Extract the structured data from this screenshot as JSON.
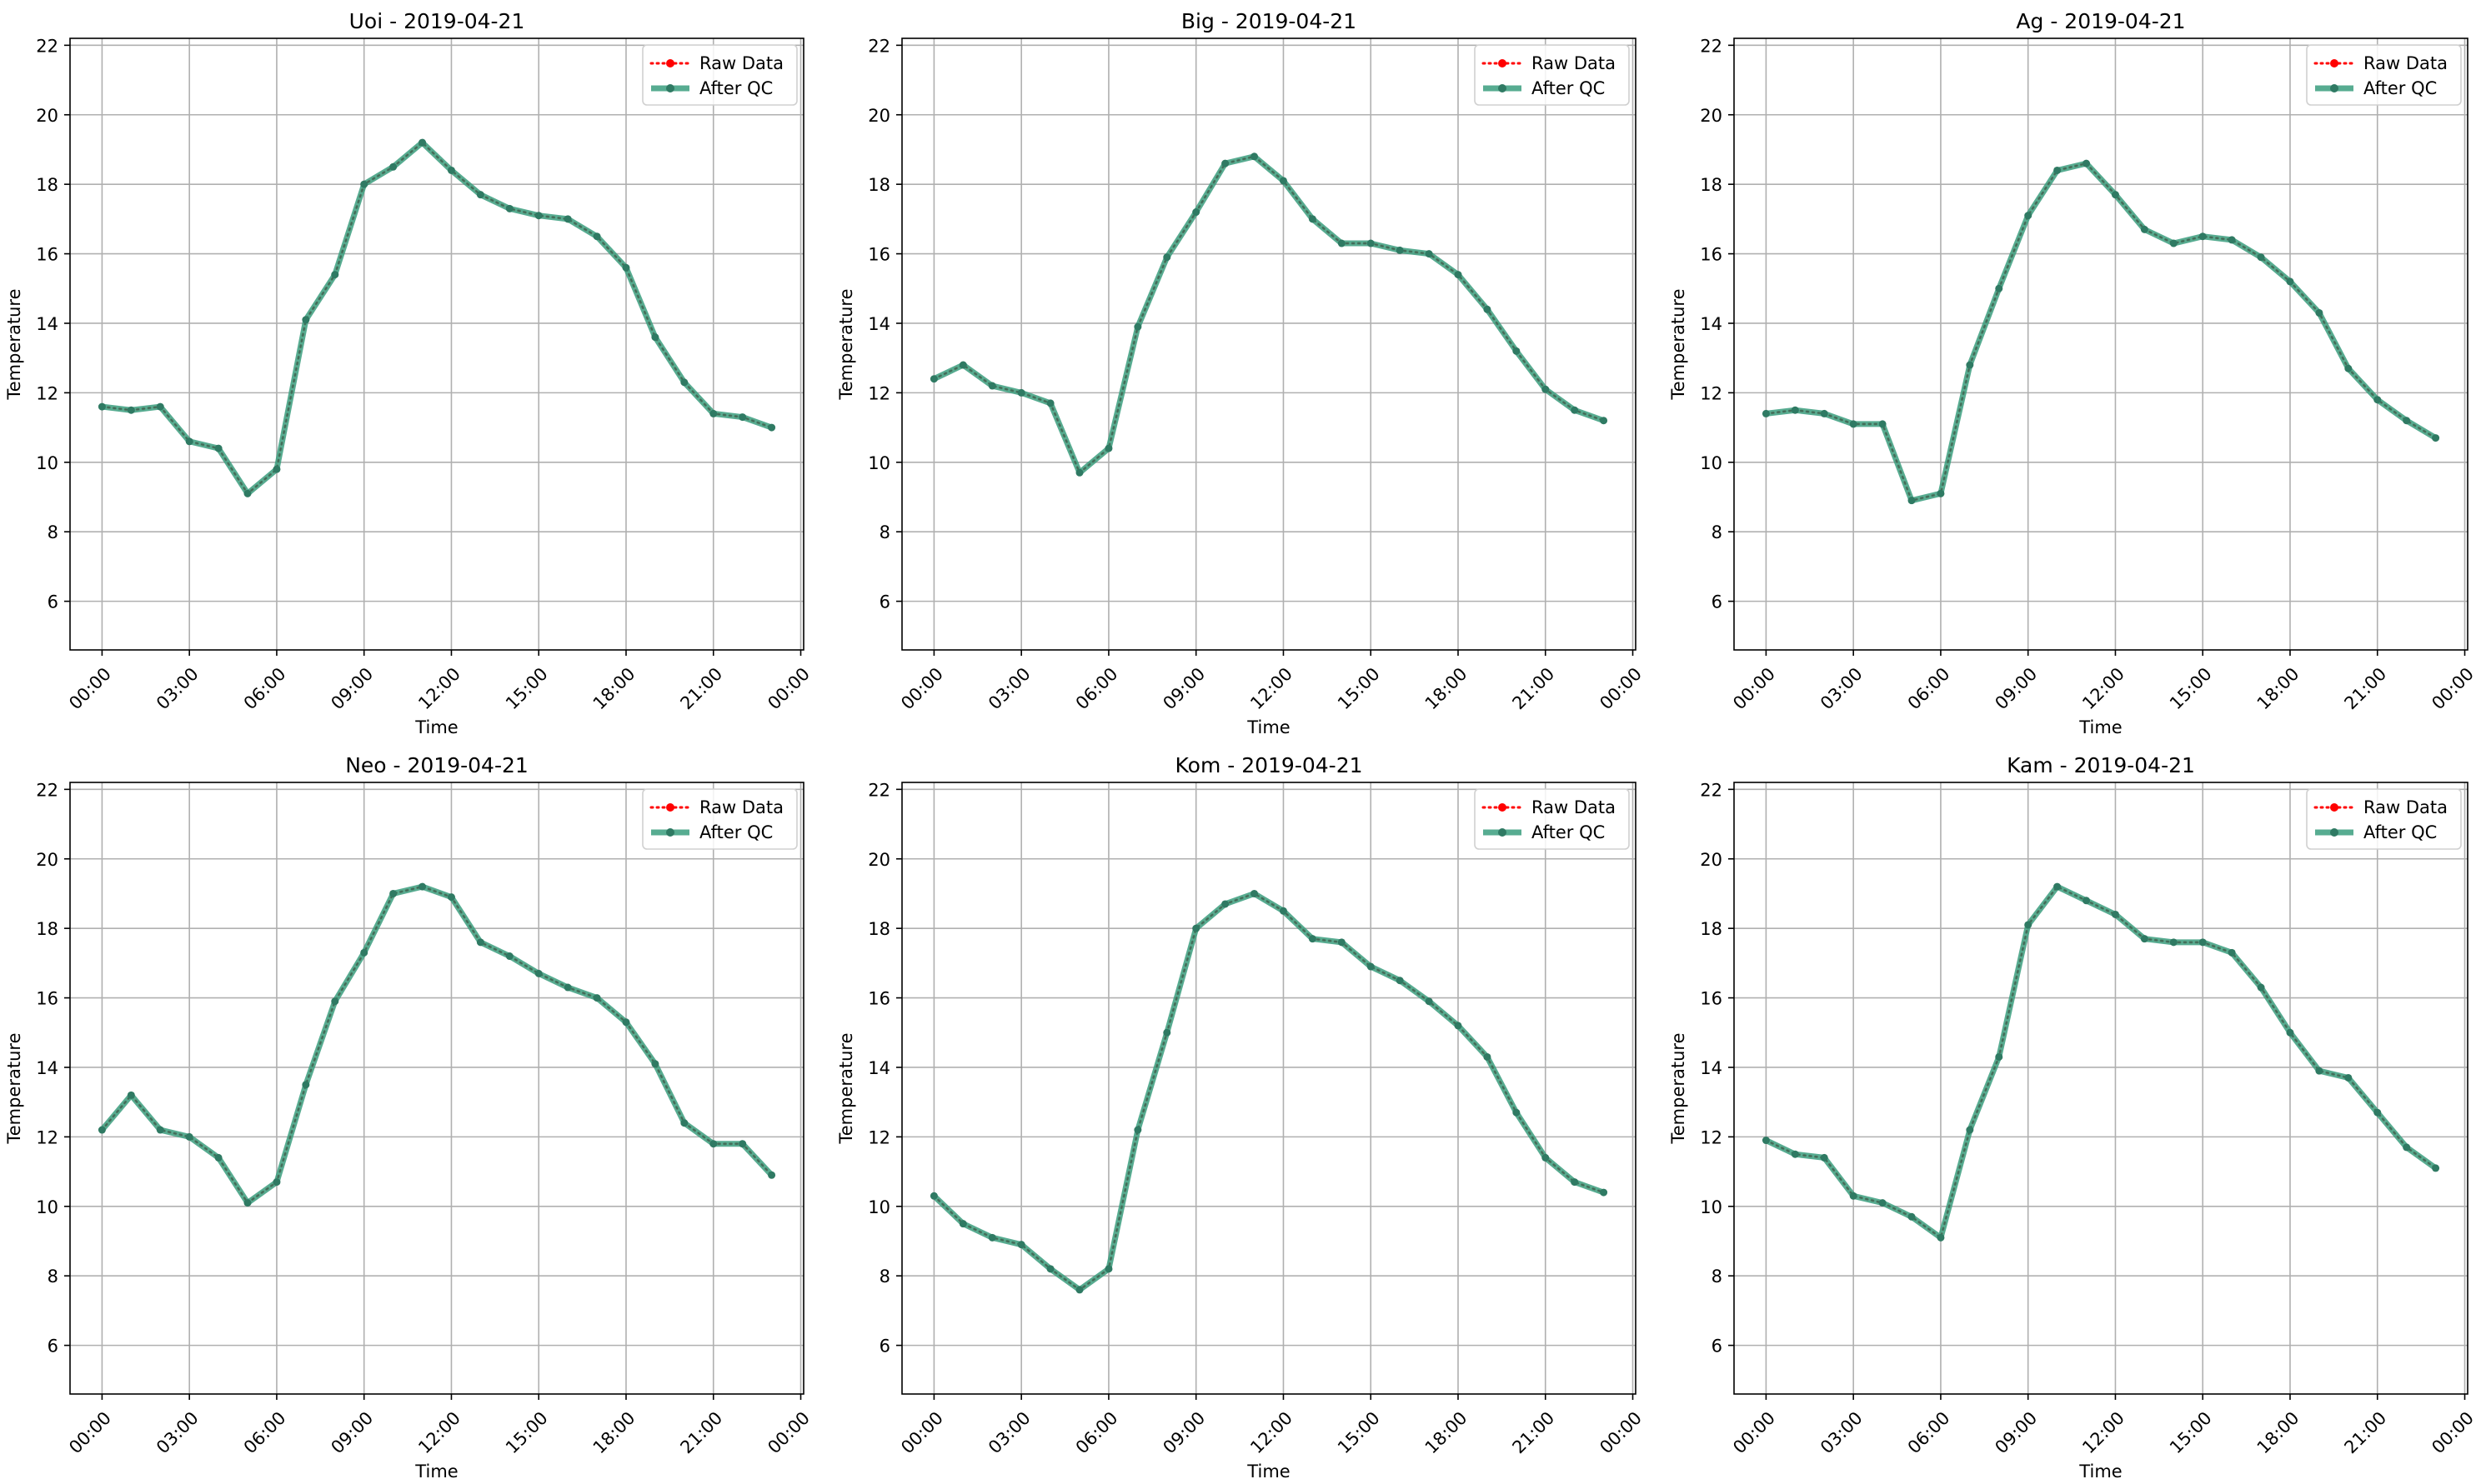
{
  "colors": {
    "raw": "#ff0000",
    "qc": "#2ca02c",
    "qc_line": "#3a9e7e",
    "grid": "#b0b0b0",
    "axes": "#000000"
  },
  "chart_data": [
    {
      "type": "line",
      "title": "Uoi - 2019-04-21",
      "xlabel": "Time",
      "ylabel": "Temperature",
      "x_unit": "hour",
      "xlim": [
        -1.1,
        24.1
      ],
      "ylim": [
        4.6,
        22.2
      ],
      "yticks": [
        6,
        8,
        10,
        12,
        14,
        16,
        18,
        20,
        22
      ],
      "xticks": [
        0,
        3,
        6,
        9,
        12,
        15,
        18,
        21,
        24
      ],
      "xtick_labels": [
        "00:00",
        "03:00",
        "06:00",
        "09:00",
        "12:00",
        "15:00",
        "18:00",
        "21:00",
        "00:00"
      ],
      "grid": true,
      "legend": "upper right",
      "x": [
        0,
        1,
        2,
        3,
        4,
        5,
        6,
        7,
        8,
        9,
        10,
        11,
        12,
        13,
        14,
        15,
        16,
        17,
        18,
        19,
        20,
        21,
        22,
        23
      ],
      "series": [
        {
          "name": "Raw Data",
          "values": [
            11.6,
            11.5,
            11.6,
            10.6,
            10.4,
            9.1,
            9.8,
            14.1,
            15.4,
            18.0,
            18.5,
            19.2,
            18.4,
            17.7,
            17.3,
            17.1,
            17.0,
            16.5,
            15.6,
            13.6,
            12.3,
            11.4,
            11.3,
            11.0
          ]
        },
        {
          "name": "After QC",
          "values": [
            11.6,
            11.5,
            11.6,
            10.6,
            10.4,
            9.1,
            9.8,
            14.1,
            15.4,
            18.0,
            18.5,
            19.2,
            18.4,
            17.7,
            17.3,
            17.1,
            17.0,
            16.5,
            15.6,
            13.6,
            12.3,
            11.4,
            11.3,
            11.0
          ]
        }
      ]
    },
    {
      "type": "line",
      "title": "Big - 2019-04-21",
      "xlabel": "Time",
      "ylabel": "Temperature",
      "x_unit": "hour",
      "xlim": [
        -1.1,
        24.1
      ],
      "ylim": [
        4.6,
        22.2
      ],
      "yticks": [
        6,
        8,
        10,
        12,
        14,
        16,
        18,
        20,
        22
      ],
      "xticks": [
        0,
        3,
        6,
        9,
        12,
        15,
        18,
        21,
        24
      ],
      "xtick_labels": [
        "00:00",
        "03:00",
        "06:00",
        "09:00",
        "12:00",
        "15:00",
        "18:00",
        "21:00",
        "00:00"
      ],
      "grid": true,
      "legend": "upper right",
      "x": [
        0,
        1,
        2,
        3,
        4,
        5,
        6,
        7,
        8,
        9,
        10,
        11,
        12,
        13,
        14,
        15,
        16,
        17,
        18,
        19,
        20,
        21,
        22,
        23
      ],
      "series": [
        {
          "name": "Raw Data",
          "values": [
            12.4,
            12.8,
            12.2,
            12.0,
            11.7,
            9.7,
            10.4,
            13.9,
            15.9,
            17.2,
            18.6,
            18.8,
            18.1,
            17.0,
            16.3,
            16.3,
            16.1,
            16.0,
            15.4,
            14.4,
            13.2,
            12.1,
            11.5,
            11.2
          ]
        },
        {
          "name": "After QC",
          "values": [
            12.4,
            12.8,
            12.2,
            12.0,
            11.7,
            9.7,
            10.4,
            13.9,
            15.9,
            17.2,
            18.6,
            18.8,
            18.1,
            17.0,
            16.3,
            16.3,
            16.1,
            16.0,
            15.4,
            14.4,
            13.2,
            12.1,
            11.5,
            11.2
          ]
        }
      ]
    },
    {
      "type": "line",
      "title": "Ag - 2019-04-21",
      "xlabel": "Time",
      "ylabel": "Temperature",
      "x_unit": "hour",
      "xlim": [
        -1.1,
        24.1
      ],
      "ylim": [
        4.6,
        22.2
      ],
      "yticks": [
        6,
        8,
        10,
        12,
        14,
        16,
        18,
        20,
        22
      ],
      "xticks": [
        0,
        3,
        6,
        9,
        12,
        15,
        18,
        21,
        24
      ],
      "xtick_labels": [
        "00:00",
        "03:00",
        "06:00",
        "09:00",
        "12:00",
        "15:00",
        "18:00",
        "21:00",
        "00:00"
      ],
      "grid": true,
      "legend": "upper right",
      "x": [
        0,
        1,
        2,
        3,
        4,
        5,
        6,
        7,
        8,
        9,
        10,
        11,
        12,
        13,
        14,
        15,
        16,
        17,
        18,
        19,
        20,
        21,
        22,
        23
      ],
      "series": [
        {
          "name": "Raw Data",
          "values": [
            11.4,
            11.5,
            11.4,
            11.1,
            11.1,
            8.9,
            9.1,
            12.8,
            15.0,
            17.1,
            18.4,
            18.6,
            17.7,
            16.7,
            16.3,
            16.5,
            16.4,
            15.9,
            15.2,
            14.3,
            12.7,
            11.8,
            11.2,
            10.7
          ]
        },
        {
          "name": "After QC",
          "values": [
            11.4,
            11.5,
            11.4,
            11.1,
            11.1,
            8.9,
            9.1,
            12.8,
            15.0,
            17.1,
            18.4,
            18.6,
            17.7,
            16.7,
            16.3,
            16.5,
            16.4,
            15.9,
            15.2,
            14.3,
            12.7,
            11.8,
            11.2,
            10.7
          ]
        }
      ]
    },
    {
      "type": "line",
      "title": "Neo - 2019-04-21",
      "xlabel": "Time",
      "ylabel": "Temperature",
      "x_unit": "hour",
      "xlim": [
        -1.1,
        24.1
      ],
      "ylim": [
        4.6,
        22.2
      ],
      "yticks": [
        6,
        8,
        10,
        12,
        14,
        16,
        18,
        20,
        22
      ],
      "xticks": [
        0,
        3,
        6,
        9,
        12,
        15,
        18,
        21,
        24
      ],
      "xtick_labels": [
        "00:00",
        "03:00",
        "06:00",
        "09:00",
        "12:00",
        "15:00",
        "18:00",
        "21:00",
        "00:00"
      ],
      "grid": true,
      "legend": "upper right",
      "x": [
        0,
        1,
        2,
        3,
        4,
        5,
        6,
        7,
        8,
        9,
        10,
        11,
        12,
        13,
        14,
        15,
        16,
        17,
        18,
        19,
        20,
        21,
        22,
        23
      ],
      "series": [
        {
          "name": "Raw Data",
          "values": [
            12.2,
            13.2,
            12.2,
            12.0,
            11.4,
            10.1,
            10.7,
            13.5,
            15.9,
            17.3,
            19.0,
            19.2,
            18.9,
            17.6,
            17.2,
            16.7,
            16.3,
            16.0,
            15.3,
            14.1,
            12.4,
            11.8,
            11.8,
            10.9
          ]
        },
        {
          "name": "After QC",
          "values": [
            12.2,
            13.2,
            12.2,
            12.0,
            11.4,
            10.1,
            10.7,
            13.5,
            15.9,
            17.3,
            19.0,
            19.2,
            18.9,
            17.6,
            17.2,
            16.7,
            16.3,
            16.0,
            15.3,
            14.1,
            12.4,
            11.8,
            11.8,
            10.9
          ]
        }
      ]
    },
    {
      "type": "line",
      "title": "Kom - 2019-04-21",
      "xlabel": "Time",
      "ylabel": "Temperature",
      "x_unit": "hour",
      "xlim": [
        -1.1,
        24.1
      ],
      "ylim": [
        4.6,
        22.2
      ],
      "yticks": [
        6,
        8,
        10,
        12,
        14,
        16,
        18,
        20,
        22
      ],
      "xticks": [
        0,
        3,
        6,
        9,
        12,
        15,
        18,
        21,
        24
      ],
      "xtick_labels": [
        "00:00",
        "03:00",
        "06:00",
        "09:00",
        "12:00",
        "15:00",
        "18:00",
        "21:00",
        "00:00"
      ],
      "grid": true,
      "legend": "upper right",
      "x": [
        0,
        1,
        2,
        3,
        4,
        5,
        6,
        7,
        8,
        9,
        10,
        11,
        12,
        13,
        14,
        15,
        16,
        17,
        18,
        19,
        20,
        21,
        22,
        23
      ],
      "series": [
        {
          "name": "Raw Data",
          "values": [
            10.3,
            9.5,
            9.1,
            8.9,
            8.2,
            7.6,
            8.2,
            12.2,
            15.0,
            18.0,
            18.7,
            19.0,
            18.5,
            17.7,
            17.6,
            16.9,
            16.5,
            15.9,
            15.2,
            14.3,
            12.7,
            11.4,
            10.7,
            10.4
          ]
        },
        {
          "name": "After QC",
          "values": [
            10.3,
            9.5,
            9.1,
            8.9,
            8.2,
            7.6,
            8.2,
            12.2,
            15.0,
            18.0,
            18.7,
            19.0,
            18.5,
            17.7,
            17.6,
            16.9,
            16.5,
            15.9,
            15.2,
            14.3,
            12.7,
            11.4,
            10.7,
            10.4
          ]
        }
      ]
    },
    {
      "type": "line",
      "title": "Kam - 2019-04-21",
      "xlabel": "Time",
      "ylabel": "Temperature",
      "x_unit": "hour",
      "xlim": [
        -1.1,
        24.1
      ],
      "ylim": [
        4.6,
        22.2
      ],
      "yticks": [
        6,
        8,
        10,
        12,
        14,
        16,
        18,
        20,
        22
      ],
      "xticks": [
        0,
        3,
        6,
        9,
        12,
        15,
        18,
        21,
        24
      ],
      "xtick_labels": [
        "00:00",
        "03:00",
        "06:00",
        "09:00",
        "12:00",
        "15:00",
        "18:00",
        "21:00",
        "00:00"
      ],
      "grid": true,
      "legend": "upper right",
      "x": [
        0,
        1,
        2,
        3,
        4,
        5,
        6,
        7,
        8,
        9,
        10,
        11,
        12,
        13,
        14,
        15,
        16,
        17,
        18,
        19,
        20,
        21,
        22,
        23
      ],
      "series": [
        {
          "name": "Raw Data",
          "values": [
            11.9,
            11.5,
            11.4,
            10.3,
            10.1,
            9.7,
            9.1,
            12.2,
            14.3,
            18.1,
            19.2,
            18.8,
            18.4,
            17.7,
            17.6,
            17.6,
            17.3,
            16.3,
            15.0,
            13.9,
            13.7,
            12.7,
            11.7,
            11.1
          ]
        },
        {
          "name": "After QC",
          "values": [
            11.9,
            11.5,
            11.4,
            10.3,
            10.1,
            9.7,
            9.1,
            12.2,
            14.3,
            18.1,
            19.2,
            18.8,
            18.4,
            17.7,
            17.6,
            17.6,
            17.3,
            16.3,
            15.0,
            13.9,
            13.7,
            12.7,
            11.7,
            11.1
          ]
        }
      ]
    }
  ]
}
